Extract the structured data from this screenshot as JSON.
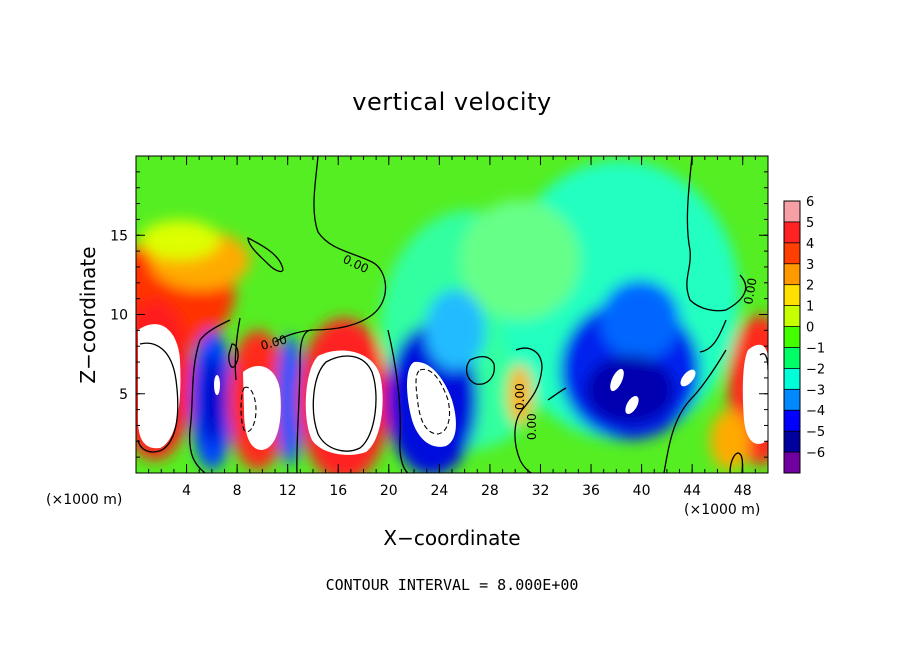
{
  "chart_data": {
    "type": "heatmap",
    "title": "vertical velocity",
    "xlabel": "X−coordinate",
    "ylabel": "Z−coordinate",
    "x_unit_label": "(×1000 m)",
    "footer": "CONTOUR INTERVAL = 8.000E+00",
    "xlim": [
      0,
      50
    ],
    "ylim": [
      0,
      20
    ],
    "x_ticks": [
      4,
      8,
      12,
      16,
      20,
      24,
      28,
      32,
      36,
      40,
      44,
      48
    ],
    "y_ticks": [
      5,
      10,
      15
    ],
    "colorbar": {
      "ticks": [
        6,
        5,
        4,
        3,
        2,
        1,
        0,
        -1,
        -2,
        -3,
        -4,
        -5,
        -6
      ],
      "tick_labels": [
        "6",
        "5",
        "4",
        "3",
        "2",
        "1",
        "0",
        "−1",
        "−2",
        "−3",
        "−4",
        "−5",
        "−6"
      ],
      "colors": [
        "#f6a0a6",
        "#ff2222",
        "#ff3f00",
        "#ff9900",
        "#ffe000",
        "#c8ff00",
        "#44ff00",
        "#00ff66",
        "#00ffd8",
        "#0088ff",
        "#0000ff",
        "#00009f",
        "#7000a0"
      ],
      "vmin": -6,
      "vmax": 6
    },
    "contour_labels": [
      "0.00",
      "0.00",
      "0.00",
      "0.00",
      "0.00"
    ],
    "features": [
      {
        "x": 2.0,
        "z": 6.0,
        "value": 9
      },
      {
        "x": 9.5,
        "z": 5.0,
        "value": 8
      },
      {
        "x": 16.5,
        "z": 6.0,
        "value": 9
      },
      {
        "x": 6.5,
        "z": 5.5,
        "value": -5
      },
      {
        "x": 24.5,
        "z": 5.5,
        "value": -9
      },
      {
        "x": 38.5,
        "z": 6.0,
        "value": -6
      },
      {
        "x": 40.0,
        "z": 9.5,
        "value": -3
      },
      {
        "x": 49.0,
        "z": 6.0,
        "value": 8
      },
      {
        "x": 3.5,
        "z": 13.0,
        "value": 4
      },
      {
        "x": 30.5,
        "z": 6.0,
        "value": 2
      }
    ]
  }
}
